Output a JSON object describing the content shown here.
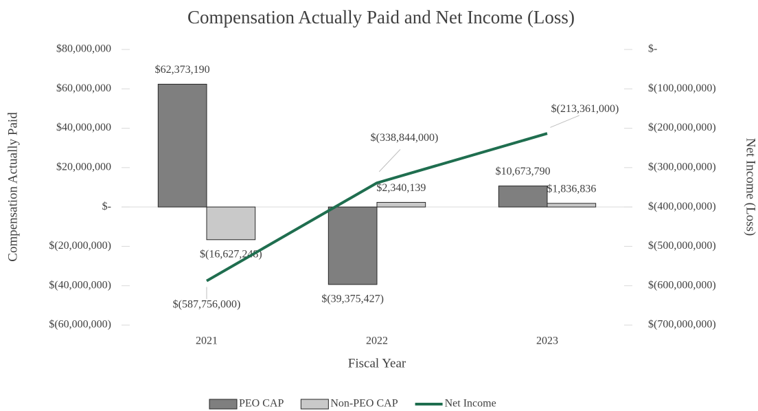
{
  "chart_data": {
    "type": "bar",
    "title": "Compensation Actually Paid and Net Income (Loss)",
    "xlabel": "Fiscal Year",
    "ylabel": "Compensation Actually Paid",
    "y2label": "Net Income (Loss)",
    "categories": [
      "2021",
      "2022",
      "2023"
    ],
    "series": [
      {
        "name": "PEO CAP",
        "type": "bar",
        "color": "#7f7f7f",
        "values": [
          62373190,
          -39375427,
          10673790
        ],
        "value_labels": [
          "$62,373,190",
          "$(39,375,427)",
          "$10,673,790"
        ]
      },
      {
        "name": "Non-PEO CAP",
        "type": "bar",
        "color": "#c9c9c9",
        "values": [
          -16627248,
          2340139,
          1836836
        ],
        "value_labels": [
          "$(16,627,248)",
          "$2,340,139",
          "$1,836,836"
        ]
      },
      {
        "name": "Net Income",
        "type": "line",
        "axis": "y2",
        "color": "#1f6e4f",
        "values": [
          -587756000,
          -338844000,
          -213361000
        ],
        "value_labels": [
          "$(587,756,000)",
          "$(338,844,000)",
          "$(213,361,000)"
        ]
      }
    ],
    "ylim": [
      -60000000,
      80000000
    ],
    "yticks": [
      {
        "value": -60000000,
        "label": "$(60,000,000)"
      },
      {
        "value": -40000000,
        "label": "$(40,000,000)"
      },
      {
        "value": -20000000,
        "label": "$(20,000,000)"
      },
      {
        "value": 0,
        "label": "$-"
      },
      {
        "value": 20000000,
        "label": "$20,000,000"
      },
      {
        "value": 40000000,
        "label": "$40,000,000"
      },
      {
        "value": 60000000,
        "label": "$60,000,000"
      },
      {
        "value": 80000000,
        "label": "$80,000,000"
      }
    ],
    "y2lim": [
      -700000000,
      0
    ],
    "y2ticks": [
      {
        "value": -700000000,
        "label": "$(700,000,000)"
      },
      {
        "value": -600000000,
        "label": "$(600,000,000)"
      },
      {
        "value": -500000000,
        "label": "$(500,000,000)"
      },
      {
        "value": -400000000,
        "label": "$(400,000,000)"
      },
      {
        "value": -300000000,
        "label": "$(300,000,000)"
      },
      {
        "value": -200000000,
        "label": "$(200,000,000)"
      },
      {
        "value": -100000000,
        "label": "$(100,000,000)"
      },
      {
        "value": 0,
        "label": "$-"
      }
    ],
    "grid": false,
    "legend": "bottom"
  }
}
